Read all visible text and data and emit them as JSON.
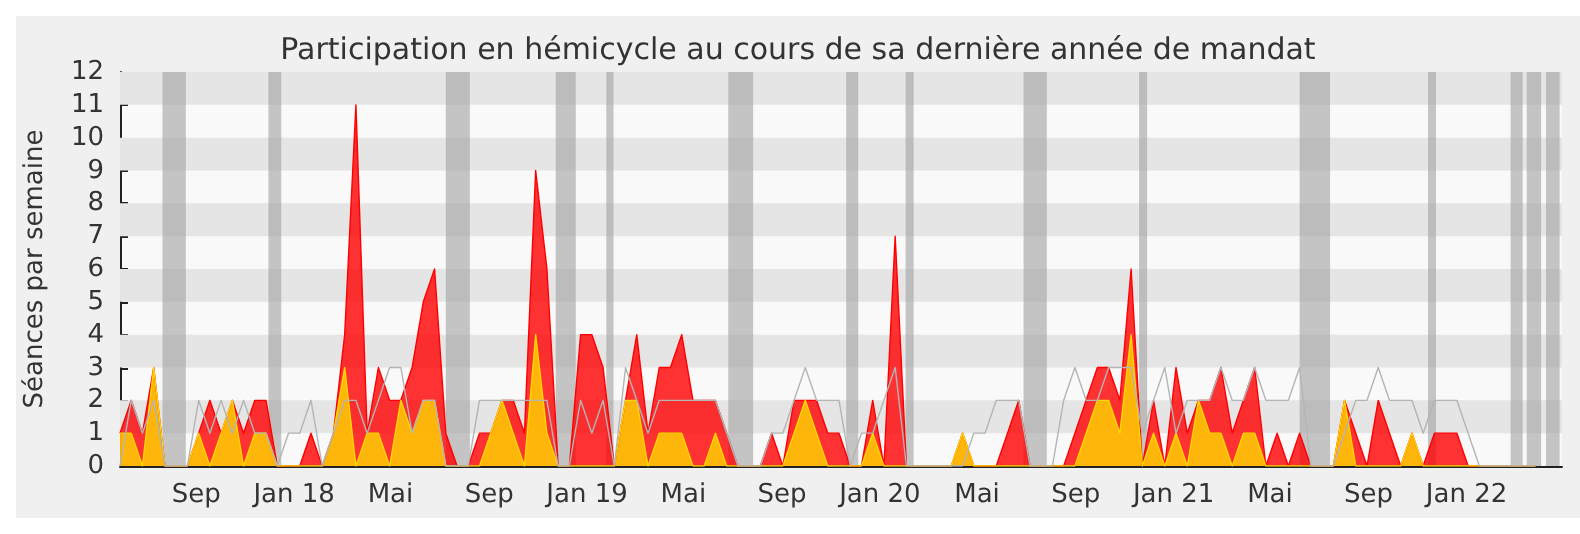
{
  "chart_data": {
    "type": "area",
    "title": "Participation en hémicycle au cours de sa dernière année de mandat",
    "ylabel": "Séances par semaine",
    "x": [
      "2017-05-29",
      "2017-06-12",
      "2017-06-26",
      "2017-07-10",
      "2017-07-24",
      "2017-08-07",
      "2017-08-21",
      "2017-09-04",
      "2017-09-18",
      "2017-10-02",
      "2017-10-16",
      "2017-10-30",
      "2017-11-13",
      "2017-11-27",
      "2017-12-11",
      "2017-12-25",
      "2018-01-08",
      "2018-01-22",
      "2018-02-05",
      "2018-02-19",
      "2018-03-05",
      "2018-03-19",
      "2018-04-02",
      "2018-04-16",
      "2018-04-30",
      "2018-05-14",
      "2018-05-28",
      "2018-06-11",
      "2018-06-25",
      "2018-07-09",
      "2018-07-23",
      "2018-08-06",
      "2018-08-20",
      "2018-09-03",
      "2018-09-17",
      "2018-10-01",
      "2018-10-15",
      "2018-10-29",
      "2018-11-12",
      "2018-11-26",
      "2018-12-10",
      "2018-12-24",
      "2019-01-07",
      "2019-01-21",
      "2019-02-04",
      "2019-02-18",
      "2019-03-04",
      "2019-03-18",
      "2019-04-01",
      "2019-04-15",
      "2019-04-29",
      "2019-05-13",
      "2019-05-27",
      "2019-06-10",
      "2019-06-24",
      "2019-07-08",
      "2019-07-22",
      "2019-08-05",
      "2019-08-19",
      "2019-09-02",
      "2019-09-16",
      "2019-09-30",
      "2019-10-14",
      "2019-10-28",
      "2019-11-11",
      "2019-11-25",
      "2019-12-09",
      "2019-12-23",
      "2020-01-06",
      "2020-01-20",
      "2020-02-03",
      "2020-02-17",
      "2020-03-02",
      "2020-03-16",
      "2020-03-30",
      "2020-04-13",
      "2020-04-27",
      "2020-05-11",
      "2020-05-25",
      "2020-06-08",
      "2020-06-22",
      "2020-07-06",
      "2020-07-20",
      "2020-08-03",
      "2020-08-17",
      "2020-08-31",
      "2020-09-14",
      "2020-09-28",
      "2020-10-12",
      "2020-10-26",
      "2020-11-09",
      "2020-11-23",
      "2020-12-07",
      "2020-12-21",
      "2021-01-04",
      "2021-01-18",
      "2021-02-01",
      "2021-02-15",
      "2021-03-01",
      "2021-03-15",
      "2021-03-29",
      "2021-04-12",
      "2021-04-26",
      "2021-05-10",
      "2021-05-24",
      "2021-06-07",
      "2021-06-21",
      "2021-07-05",
      "2021-07-19",
      "2021-08-02",
      "2021-08-16",
      "2021-08-30",
      "2021-09-13",
      "2021-09-27",
      "2021-10-11",
      "2021-10-25",
      "2021-11-08",
      "2021-11-22",
      "2021-12-06",
      "2021-12-20",
      "2022-01-03",
      "2022-01-17",
      "2022-01-31",
      "2022-02-14",
      "2022-02-28",
      "2022-03-14",
      "2022-03-28"
    ],
    "series": [
      {
        "color": "#ff0000",
        "values": [
          1,
          2,
          1,
          3,
          0,
          0,
          0,
          1,
          2,
          1,
          2,
          1,
          2,
          2,
          0,
          0,
          0,
          1,
          0,
          1,
          4,
          11,
          1,
          3,
          2,
          2,
          3,
          5,
          6,
          1,
          0,
          0,
          1,
          1,
          2,
          2,
          1,
          9,
          6,
          0,
          0,
          4,
          4,
          3,
          0,
          2,
          4,
          1,
          3,
          3,
          4,
          2,
          2,
          2,
          1,
          0,
          0,
          0,
          1,
          0,
          2,
          2,
          2,
          1,
          1,
          0,
          0,
          2,
          0,
          7,
          0,
          0,
          0,
          0,
          0,
          1,
          0,
          0,
          0,
          1,
          2,
          0,
          0,
          0,
          0,
          1,
          2,
          3,
          3,
          2,
          6,
          0,
          2,
          0,
          3,
          1,
          2,
          2,
          3,
          1,
          2,
          3,
          0,
          1,
          0,
          1,
          0,
          0,
          0,
          2,
          1,
          0,
          2,
          1,
          0,
          1,
          0,
          1,
          1,
          1,
          0,
          0,
          0,
          0,
          0,
          0,
          0
        ]
      },
      {
        "color": "#ffd700",
        "values": [
          1,
          1,
          0,
          3,
          0,
          0,
          0,
          1,
          0,
          1,
          2,
          0,
          1,
          1,
          0,
          0,
          0,
          0,
          0,
          1,
          3,
          0,
          1,
          1,
          0,
          2,
          1,
          2,
          2,
          0,
          0,
          0,
          0,
          1,
          2,
          1,
          0,
          4,
          1,
          0,
          0,
          0,
          0,
          0,
          0,
          2,
          2,
          0,
          1,
          1,
          1,
          0,
          0,
          1,
          0,
          0,
          0,
          0,
          0,
          0,
          1,
          2,
          1,
          0,
          0,
          0,
          0,
          1,
          0,
          0,
          0,
          0,
          0,
          0,
          0,
          1,
          0,
          0,
          0,
          0,
          0,
          0,
          0,
          0,
          0,
          0,
          1,
          2,
          2,
          1,
          4,
          0,
          1,
          0,
          1,
          0,
          2,
          1,
          1,
          0,
          1,
          1,
          0,
          0,
          0,
          0,
          0,
          0,
          0,
          2,
          0,
          0,
          0,
          0,
          0,
          1,
          0,
          0,
          0,
          0,
          0,
          0,
          0,
          0,
          0,
          0,
          0
        ]
      },
      {
        "type": "line",
        "color": "#b4b4b4",
        "values": [
          0,
          2,
          1,
          2,
          0,
          0,
          0,
          2,
          1,
          2,
          1,
          2,
          1,
          1,
          0,
          1,
          1,
          2,
          0,
          1,
          2,
          2,
          1,
          2,
          3,
          3,
          1,
          2,
          2,
          0,
          0,
          0,
          2,
          2,
          2,
          2,
          2,
          2,
          2,
          0,
          0,
          2,
          1,
          2,
          0,
          3,
          2,
          1,
          2,
          2,
          2,
          2,
          2,
          2,
          1,
          0,
          0,
          0,
          1,
          1,
          2,
          3,
          2,
          2,
          2,
          0,
          1,
          1,
          2,
          3,
          0,
          0,
          0,
          0,
          0,
          0,
          1,
          1,
          2,
          2,
          2,
          0,
          0,
          0,
          2,
          3,
          2,
          2,
          3,
          3,
          3,
          1,
          2,
          3,
          1,
          2,
          2,
          2,
          3,
          2,
          2,
          3,
          2,
          2,
          2,
          3,
          0,
          0,
          0,
          1,
          2,
          2,
          3,
          2,
          2,
          2,
          1,
          2,
          2,
          2,
          1,
          0,
          0,
          0,
          0,
          0,
          0
        ]
      }
    ],
    "xlim": [
      "2017-05-29",
      "2022-04-30"
    ],
    "xticks": [
      {
        "value": "2017-09-01",
        "label": "Sep"
      },
      {
        "value": "2018-01-01",
        "label": "Jan 18"
      },
      {
        "value": "2018-05-01",
        "label": "Mai"
      },
      {
        "value": "2018-09-01",
        "label": "Sep"
      },
      {
        "value": "2019-01-01",
        "label": "Jan 19"
      },
      {
        "value": "2019-05-01",
        "label": "Mai"
      },
      {
        "value": "2019-09-01",
        "label": "Sep"
      },
      {
        "value": "2020-01-01",
        "label": "Jan 20"
      },
      {
        "value": "2020-05-01",
        "label": "Mai"
      },
      {
        "value": "2020-09-01",
        "label": "Sep"
      },
      {
        "value": "2021-01-01",
        "label": "Jan 21"
      },
      {
        "value": "2021-05-01",
        "label": "Mai"
      },
      {
        "value": "2021-09-01",
        "label": "Sep"
      },
      {
        "value": "2022-01-01",
        "label": "Jan 22"
      }
    ],
    "ylim": [
      0,
      12
    ],
    "yticks": [
      0,
      1,
      2,
      3,
      4,
      5,
      6,
      7,
      8,
      9,
      10,
      11,
      12
    ],
    "bands": [
      {
        "axis": "y",
        "from": 1,
        "to": 2,
        "color": "#e5e5e5"
      },
      {
        "axis": "y",
        "from": 3,
        "to": 4,
        "color": "#e5e5e5"
      },
      {
        "axis": "y",
        "from": 5,
        "to": 6,
        "color": "#e5e5e5"
      },
      {
        "axis": "y",
        "from": 7,
        "to": 8,
        "color": "#e5e5e5"
      },
      {
        "axis": "y",
        "from": 9,
        "to": 10,
        "color": "#e5e5e5"
      },
      {
        "axis": "y",
        "from": 11,
        "to": 12,
        "color": "#e5e5e5"
      },
      {
        "axis": "x",
        "from": "2017-07-21",
        "to": "2017-08-19",
        "color": "#a0a0a0"
      },
      {
        "axis": "x",
        "from": "2017-11-30",
        "to": "2017-12-16",
        "color": "#a0a0a0"
      },
      {
        "axis": "x",
        "from": "2018-07-09",
        "to": "2018-08-08",
        "color": "#a0a0a0"
      },
      {
        "axis": "x",
        "from": "2018-11-23",
        "to": "2018-12-18",
        "color": "#a0a0a0"
      },
      {
        "axis": "x",
        "from": "2019-01-25",
        "to": "2019-02-03",
        "color": "#a0a0a0"
      },
      {
        "axis": "x",
        "from": "2019-06-26",
        "to": "2019-07-27",
        "color": "#a0a0a0"
      },
      {
        "axis": "x",
        "from": "2019-11-20",
        "to": "2019-12-05",
        "color": "#a0a0a0"
      },
      {
        "axis": "x",
        "from": "2020-02-02",
        "to": "2020-02-12",
        "color": "#a0a0a0"
      },
      {
        "axis": "x",
        "from": "2020-06-28",
        "to": "2020-07-27",
        "color": "#a0a0a0"
      },
      {
        "axis": "x",
        "from": "2020-11-19",
        "to": "2020-11-29",
        "color": "#a0a0a0"
      },
      {
        "axis": "x",
        "from": "2021-06-07",
        "to": "2021-07-15",
        "color": "#a0a0a0"
      },
      {
        "axis": "x",
        "from": "2021-11-14",
        "to": "2021-11-24",
        "color": "#a0a0a0"
      },
      {
        "axis": "x",
        "from": "2022-02-25",
        "to": "2022-03-12",
        "color": "#a0a0a0"
      },
      {
        "axis": "x",
        "from": "2022-03-17",
        "to": "2022-04-04",
        "color": "#a0a0a0"
      },
      {
        "axis": "x",
        "from": "2022-04-10",
        "to": "2022-04-27",
        "color": "#a0a0a0"
      }
    ]
  }
}
